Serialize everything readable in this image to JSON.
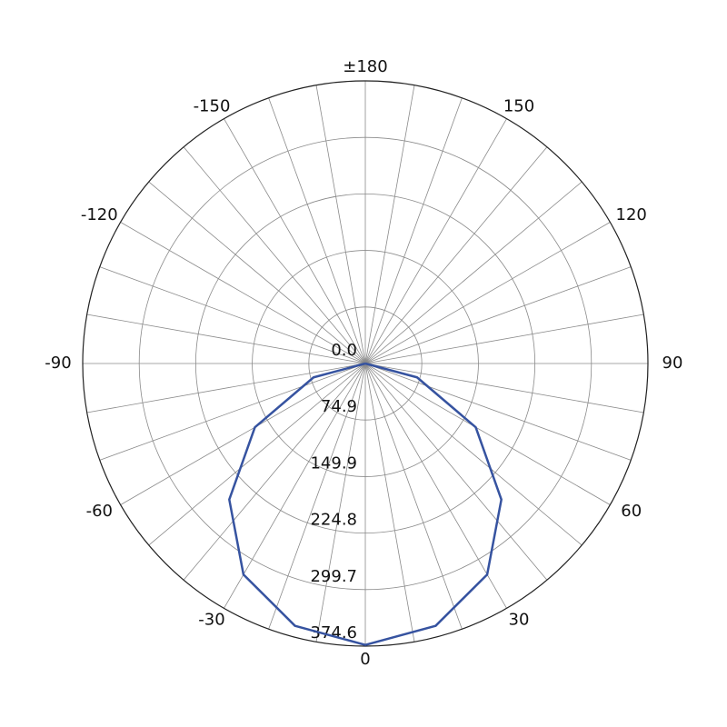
{
  "chart_data": {
    "type": "polar",
    "theta": [
      -90,
      -75,
      -60,
      -45,
      -30,
      -15,
      0,
      15,
      30,
      45,
      60,
      75,
      90
    ],
    "series": [
      {
        "color": "#3653a0",
        "values": [
          0,
          71,
          169,
          255,
          323,
          360,
          373,
          360,
          323,
          255,
          169,
          71,
          0
        ]
      }
    ],
    "rlim": [
      0,
      374.6
    ],
    "rticks": [
      {
        "value": 0,
        "label": "0.0"
      },
      74.9,
      149.9,
      224.8,
      299.7,
      374.6
    ],
    "thetaticks": [
      {
        "value": 180,
        "label": "±180"
      },
      -150,
      -120,
      -90,
      -60,
      -30,
      0,
      30,
      60,
      90,
      120,
      150
    ],
    "theta_gridlines": [
      0,
      10,
      20,
      30,
      40,
      50,
      60,
      70,
      80,
      90,
      100,
      110,
      120,
      130,
      140,
      150,
      160,
      170,
      180,
      190,
      200,
      210,
      220,
      230,
      240,
      250,
      260,
      270,
      280,
      290,
      300,
      310,
      320,
      330,
      340,
      350
    ],
    "grid": true
  }
}
